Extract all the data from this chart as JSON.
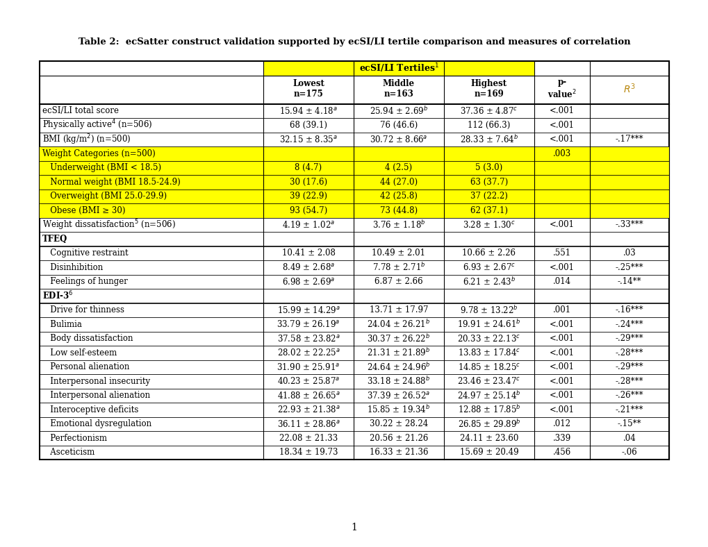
{
  "title": "Table 2:  ecSatter construct validation supported by ecSI/LI tertile comparison and measures of correlation",
  "rows": [
    {
      "label": "ecSI/LI total score",
      "indent": false,
      "bold": false,
      "highlight": false,
      "section": false,
      "lowest": "15.94 ± 4.18$^{a}$",
      "middle": "25.94 ± 2.69$^{b}$",
      "highest": "37.36 ± 4.87$^{c}$",
      "pval": "<.001",
      "r": ""
    },
    {
      "label": "Physically active$^{4}$ (n=506)",
      "indent": false,
      "bold": false,
      "highlight": false,
      "section": false,
      "lowest": "68 (39.1)",
      "middle": "76 (46.6)",
      "highest": "112 (66.3)",
      "pval": "<.001",
      "r": ""
    },
    {
      "label": "BMI (kg/m$^{2}$) (n=500)",
      "indent": false,
      "bold": false,
      "highlight": false,
      "section": false,
      "lowest": "32.15 ± 8.35$^{a}$",
      "middle": "30.72 ± 8.66$^{a}$",
      "highest": "28.33 ± 7.64$^{b}$",
      "pval": "<.001",
      "r": "-.17***"
    },
    {
      "label": "Weight Categories (n=500)",
      "indent": false,
      "bold": false,
      "highlight": true,
      "section": false,
      "lowest": "",
      "middle": "",
      "highest": "",
      "pval": ".003",
      "r": ""
    },
    {
      "label": "   Underweight (BMI < 18.5)",
      "indent": true,
      "bold": false,
      "highlight": true,
      "section": false,
      "lowest": "8 (4.7)",
      "middle": "4 (2.5)",
      "highest": "5 (3.0)",
      "pval": "",
      "r": ""
    },
    {
      "label": "   Normal weight (BMI 18.5-24.9)",
      "indent": true,
      "bold": false,
      "highlight": true,
      "section": false,
      "lowest": "30 (17.6)",
      "middle": "44 (27.0)",
      "highest": "63 (37.7)",
      "pval": "",
      "r": ""
    },
    {
      "label": "   Overweight (BMI 25.0-29.9)",
      "indent": true,
      "bold": false,
      "highlight": true,
      "section": false,
      "lowest": "39 (22.9)",
      "middle": "42 (25.8)",
      "highest": "37 (22.2)",
      "pval": "",
      "r": ""
    },
    {
      "label": "   Obese (BMI ≥ 30)",
      "indent": true,
      "bold": false,
      "highlight": true,
      "section": false,
      "lowest": "93 (54.7)",
      "middle": "73 (44.8)",
      "highest": "62 (37.1)",
      "pval": "",
      "r": ""
    },
    {
      "label": "Weight dissatisfaction$^{5}$ (n=506)",
      "indent": false,
      "bold": false,
      "highlight": false,
      "section": false,
      "lowest": "4.19 ± 1.02$^{a}$",
      "middle": "3.76 ± 1.18$^{b}$",
      "highest": "3.28 ± 1.30$^{c}$",
      "pval": "<.001",
      "r": "-.33***"
    },
    {
      "label": "TFEQ",
      "indent": false,
      "bold": true,
      "highlight": false,
      "section": true,
      "lowest": "",
      "middle": "",
      "highest": "",
      "pval": "",
      "r": ""
    },
    {
      "label": "   Cognitive restraint",
      "indent": true,
      "bold": false,
      "highlight": false,
      "section": false,
      "lowest": "10.41 ± 2.08",
      "middle": "10.49 ± 2.01",
      "highest": "10.66 ± 2.26",
      "pval": ".551",
      "r": ".03"
    },
    {
      "label": "   Disinhibition",
      "indent": true,
      "bold": false,
      "highlight": false,
      "section": false,
      "lowest": "8.49 ± 2.68$^{a}$",
      "middle": "7.78 ± 2.71$^{b}$",
      "highest": "6.93 ± 2.67$^{c}$",
      "pval": "<.001",
      "r": "-.25***"
    },
    {
      "label": "   Feelings of hunger",
      "indent": true,
      "bold": false,
      "highlight": false,
      "section": false,
      "lowest": "6.98 ± 2.69$^{a}$",
      "middle": "6.87 ± 2.66",
      "highest": "6.21 ± 2.43$^{b}$",
      "pval": ".014",
      "r": "-.14**"
    },
    {
      "label": "EDI-3$^{6}$",
      "indent": false,
      "bold": true,
      "highlight": false,
      "section": true,
      "lowest": "",
      "middle": "",
      "highest": "",
      "pval": "",
      "r": ""
    },
    {
      "label": "   Drive for thinness",
      "indent": true,
      "bold": false,
      "highlight": false,
      "section": false,
      "lowest": "15.99 ± 14.29$^{a}$",
      "middle": "13.71 ± 17.97",
      "highest": "9.78 ± 13.22$^{b}$",
      "pval": ".001",
      "r": "-.16***"
    },
    {
      "label": "   Bulimia",
      "indent": true,
      "bold": false,
      "highlight": false,
      "section": false,
      "lowest": "33.79 ± 26.19$^{a}$",
      "middle": "24.04 ± 26.21$^{b}$",
      "highest": "19.91 ± 24.61$^{b}$",
      "pval": "<.001",
      "r": "-.24***"
    },
    {
      "label": "   Body dissatisfaction",
      "indent": true,
      "bold": false,
      "highlight": false,
      "section": false,
      "lowest": "37.58 ± 23.82$^{a}$",
      "middle": "30.37 ± 26.22$^{b}$",
      "highest": "20.33 ± 22.13$^{c}$",
      "pval": "<.001",
      "r": "-.29***"
    },
    {
      "label": "   Low self-esteem",
      "indent": true,
      "bold": false,
      "highlight": false,
      "section": false,
      "lowest": "28.02 ± 22.25$^{a}$",
      "middle": "21.31 ± 21.89$^{b}$",
      "highest": "13.83 ± 17.84$^{c}$",
      "pval": "<.001",
      "r": "-.28***"
    },
    {
      "label": "   Personal alienation",
      "indent": true,
      "bold": false,
      "highlight": false,
      "section": false,
      "lowest": "31.90 ± 25.91$^{a}$",
      "middle": "24.64 ± 24.96$^{b}$",
      "highest": "14.85 ± 18.25$^{c}$",
      "pval": "<.001",
      "r": "-.29***"
    },
    {
      "label": "   Interpersonal insecurity",
      "indent": true,
      "bold": false,
      "highlight": false,
      "section": false,
      "lowest": "40.23 ± 25.87$^{a}$",
      "middle": "33.18 ± 24.88$^{b}$",
      "highest": "23.46 ± 23.47$^{c}$",
      "pval": "<.001",
      "r": "-.28***"
    },
    {
      "label": "   Interpersonal alienation",
      "indent": true,
      "bold": false,
      "highlight": false,
      "section": false,
      "lowest": "41.88 ± 26.65$^{a}$",
      "middle": "37.39 ± 26.52$^{a}$",
      "highest": "24.97 ± 25.14$^{b}$",
      "pval": "<.001",
      "r": "-.26***"
    },
    {
      "label": "   Interoceptive deficits",
      "indent": true,
      "bold": false,
      "highlight": false,
      "section": false,
      "lowest": "22.93 ± 21.38$^{a}$",
      "middle": "15.85 ± 19.34$^{b}$",
      "highest": "12.88 ± 17.85$^{b}$",
      "pval": "<.001",
      "r": "-.21***"
    },
    {
      "label": "   Emotional dysregulation",
      "indent": true,
      "bold": false,
      "highlight": false,
      "section": false,
      "lowest": "36.11 ± 28.86$^{a}$",
      "middle": "30.22 ± 28.24",
      "highest": "26.85 ± 29.89$^{b}$",
      "pval": ".012",
      "r": "-.15**"
    },
    {
      "label": "   Perfectionism",
      "indent": true,
      "bold": false,
      "highlight": false,
      "section": false,
      "lowest": "22.08 ± 21.33",
      "middle": "20.56 ± 21.26",
      "highest": "24.11 ± 23.60",
      "pval": ".339",
      "r": ".04"
    },
    {
      "label": "   Asceticism",
      "indent": true,
      "bold": false,
      "highlight": false,
      "section": false,
      "lowest": "18.34 ± 19.73",
      "middle": "16.33 ± 21.36",
      "highest": "15.69 ± 20.49",
      "pval": ".456",
      "r": "-.06"
    }
  ],
  "highlight_color": "#FFFF00",
  "font_size": 8.5,
  "title_font_size": 9.5
}
